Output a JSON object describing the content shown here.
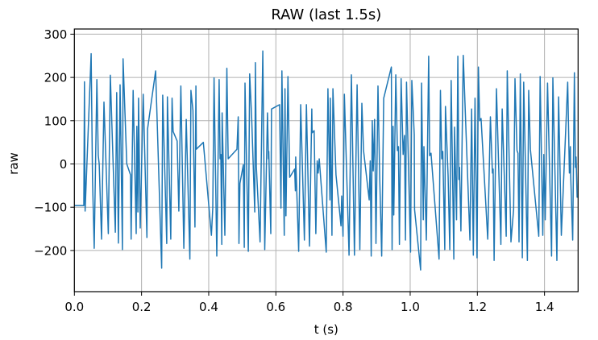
{
  "chart_data": {
    "type": "line",
    "title": "RAW (last 1.5s)",
    "xlabel": "t (s)",
    "ylabel": "raw",
    "xlim": [
      0.0,
      1.5
    ],
    "ylim": [
      -300,
      310
    ],
    "xticks": [
      0.0,
      0.2,
      0.4,
      0.6,
      0.8,
      1.0,
      1.2,
      1.4
    ],
    "xtick_labels": [
      "0.0",
      "0.2",
      "0.4",
      "0.6",
      "0.8",
      "1.0",
      "1.2",
      "1.4"
    ],
    "yticks": [
      300,
      200,
      100,
      0,
      -100,
      -200
    ],
    "ytick_labels": [
      "300",
      "200",
      "100",
      "0",
      "−100",
      "−200"
    ],
    "grid": true,
    "legend": null,
    "series": [
      {
        "name": "raw",
        "color": "#1f77b4",
        "x": [
          0.0,
          0.028,
          0.03,
          0.032,
          0.05,
          0.054,
          0.059,
          0.067,
          0.071,
          0.074,
          0.081,
          0.088,
          0.101,
          0.107,
          0.112,
          0.122,
          0.126,
          0.131,
          0.136,
          0.143,
          0.145,
          0.156,
          0.167,
          0.169,
          0.175,
          0.184,
          0.186,
          0.189,
          0.191,
          0.196,
          0.205,
          0.216,
          0.218,
          0.242,
          0.26,
          0.263,
          0.275,
          0.277,
          0.287,
          0.291,
          0.294,
          0.306,
          0.311,
          0.317,
          0.326,
          0.333,
          0.344,
          0.347,
          0.353,
          0.359,
          0.362,
          0.363,
          0.384,
          0.408,
          0.412,
          0.416,
          0.424,
          0.431,
          0.434,
          0.436,
          0.439,
          0.44,
          0.448,
          0.454,
          0.458,
          0.484,
          0.488,
          0.49,
          0.493,
          0.503,
          0.506,
          0.508,
          0.518,
          0.522,
          0.528,
          0.537,
          0.539,
          0.542,
          0.553,
          0.561,
          0.567,
          0.575,
          0.578,
          0.579,
          0.585,
          0.587,
          0.611,
          0.615,
          0.618,
          0.625,
          0.627,
          0.63,
          0.636,
          0.641,
          0.656,
          0.658,
          0.659,
          0.668,
          0.674,
          0.685,
          0.691,
          0.7,
          0.707,
          0.708,
          0.714,
          0.719,
          0.723,
          0.726,
          0.729,
          0.75,
          0.755,
          0.761,
          0.762,
          0.767,
          0.77,
          0.779,
          0.794,
          0.796,
          0.8,
          0.804,
          0.818,
          0.825,
          0.834,
          0.842,
          0.85,
          0.856,
          0.861,
          0.878,
          0.881,
          0.884,
          0.887,
          0.89,
          0.894,
          0.898,
          0.904,
          0.909,
          0.915,
          0.921,
          0.944,
          0.946,
          0.949,
          0.951,
          0.957,
          0.962,
          0.965,
          0.968,
          0.973,
          0.979,
          0.983,
          0.986,
          0.989,
          0.996,
          1.001,
          1.005,
          1.012,
          1.013,
          1.031,
          1.034,
          1.039,
          1.041,
          1.048,
          1.055,
          1.058,
          1.062,
          1.086,
          1.09,
          1.094,
          1.097,
          1.103,
          1.105,
          1.113,
          1.118,
          1.122,
          1.13,
          1.132,
          1.138,
          1.142,
          1.145,
          1.147,
          1.151,
          1.158,
          1.178,
          1.183,
          1.188,
          1.193,
          1.199,
          1.203,
          1.207,
          1.211,
          1.231,
          1.239,
          1.245,
          1.247,
          1.25,
          1.257,
          1.27,
          1.274,
          1.286,
          1.289,
          1.3,
          1.308,
          1.312,
          1.318,
          1.321,
          1.324,
          1.328,
          1.334,
          1.338,
          1.349,
          1.353,
          1.358,
          1.383,
          1.387,
          1.395,
          1.398,
          1.402,
          1.409,
          1.421,
          1.425,
          1.437,
          1.442,
          1.45,
          1.469,
          1.474,
          1.477,
          1.478,
          1.484,
          1.489,
          1.492,
          1.494,
          1.497,
          1.5
        ],
        "y": [
          -96,
          -96,
          190,
          -109,
          255,
          -36,
          -195,
          195,
          20,
          0,
          -174,
          143,
          -161,
          205,
          81,
          -158,
          165,
          -183,
          183,
          -198,
          243,
          0,
          -25,
          -174,
          170,
          -161,
          87,
          -111,
          152,
          -148,
          161,
          -170,
          81,
          215,
          -241,
          159,
          -184,
          155,
          -174,
          152,
          75,
          53,
          -109,
          180,
          -195,
          103,
          -220,
          170,
          124,
          -146,
          180,
          34,
          50,
          -165,
          -102,
          199,
          -213,
          195,
          12,
          22,
          -186,
          118,
          -165,
          221,
          12,
          34,
          109,
          -184,
          -45,
          -2,
          -193,
          187,
          -202,
          208,
          105,
          -111,
          234,
          -7,
          -180,
          261,
          -198,
          118,
          12,
          29,
          -161,
          127,
          137,
          -102,
          215,
          -165,
          174,
          -120,
          202,
          -31,
          -12,
          -62,
          16,
          -202,
          137,
          -176,
          137,
          -190,
          127,
          72,
          77,
          -161,
          7,
          -21,
          12,
          -204,
          174,
          -83,
          152,
          -165,
          174,
          -25,
          -143,
          -74,
          -167,
          161,
          -211,
          206,
          -211,
          183,
          -198,
          140,
          31,
          -83,
          7,
          -213,
          100,
          -16,
          103,
          -184,
          180,
          -27,
          -213,
          152,
          224,
          -198,
          87,
          -118,
          206,
          31,
          40,
          -186,
          197,
          22,
          66,
          -176,
          189,
          -40,
          -204,
          193,
          68,
          -105,
          -245,
          187,
          -129,
          40,
          -176,
          249,
          19,
          25,
          -220,
          170,
          12,
          29,
          -198,
          133,
          -27,
          -198,
          193,
          -220,
          85,
          -129,
          249,
          -36,
          -8,
          -155,
          251,
          -176,
          127,
          -211,
          152,
          -217,
          224,
          100,
          105,
          -174,
          109,
          -21,
          -12,
          -223,
          174,
          -186,
          127,
          -167,
          215,
          -180,
          -105,
          197,
          31,
          25,
          -180,
          208,
          -217,
          189,
          -223,
          170,
          34,
          -167,
          202,
          -165,
          22,
          -129,
          187,
          -213,
          199,
          -223,
          155,
          -165,
          189,
          -21,
          40,
          -25,
          -176,
          211,
          -8,
          16,
          -77,
          -77
        ]
      }
    ]
  },
  "colors": {
    "line": "#1f77b4",
    "grid": "#b0b0b0",
    "frame": "#000000",
    "background": "#ffffff"
  }
}
